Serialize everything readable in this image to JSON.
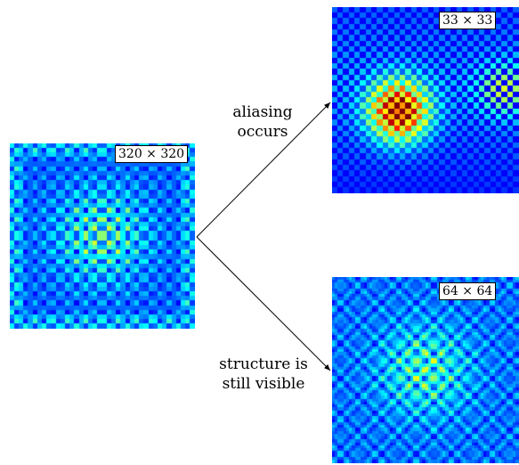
{
  "panels": {
    "input": {
      "size_label": "320 × 320",
      "grid": 40,
      "pattern": "fine"
    },
    "top": {
      "size_label": "33 × 33",
      "grid": 33,
      "pattern": "alias"
    },
    "bottom": {
      "size_label": "64 × 64",
      "grid": 64,
      "pattern": "medium"
    }
  },
  "annotations": {
    "top_line1": "aliasing",
    "top_line2": "occurs",
    "bottom_line1": "structure is",
    "bottom_line2": "still visible"
  },
  "colormap": "jet"
}
